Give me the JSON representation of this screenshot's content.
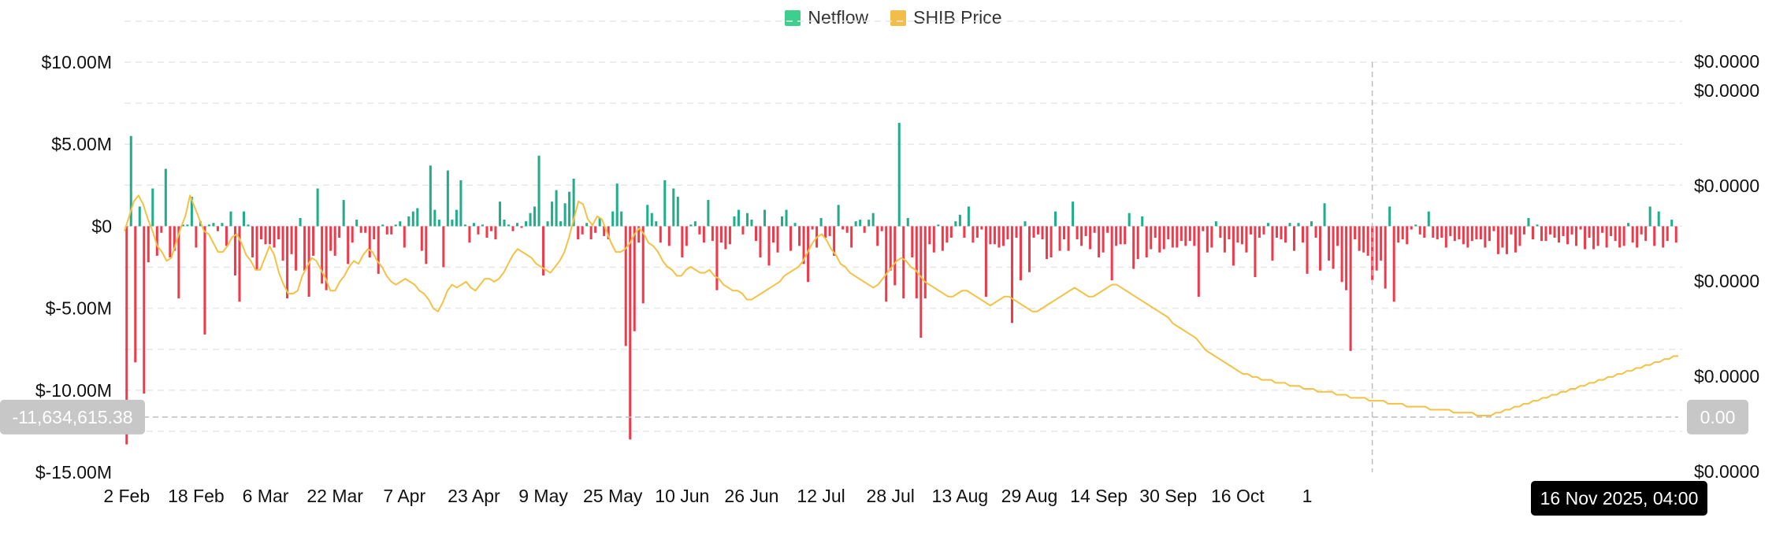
{
  "legend": [
    {
      "label": "Netflow",
      "color": "#3ecf8e"
    },
    {
      "label": "SHIB Price",
      "color": "#f3bd4a"
    }
  ],
  "colors": {
    "positive": "#1fad8b",
    "negative": "#ee3a4b",
    "price_line": "#f3c245",
    "grid": "#e7e7e7",
    "crosshair": "#bdbdbd"
  },
  "crosshair": {
    "y_value_label": "-11,634,615.38",
    "right_value_label": "0.00",
    "x_label": "16 Nov 2025, 04:00",
    "y_value": -11634615.38,
    "x_index": 287
  },
  "chart_data": {
    "type": "bar",
    "title": "",
    "xlabel": "",
    "ylabel": "",
    "x_tick_labels": [
      "2 Feb",
      "18 Feb",
      "6 Mar",
      "22 Mar",
      "7 Apr",
      "23 Apr",
      "9 May",
      "25 May",
      "10 Jun",
      "26 Jun",
      "12 Jul",
      "28 Jul",
      "13 Aug",
      "29 Aug",
      "14 Sep",
      "30 Sep",
      "16 Oct",
      "1"
    ],
    "x_tick_indices": [
      0,
      16,
      32,
      48,
      64,
      80,
      96,
      112,
      128,
      144,
      160,
      176,
      192,
      208,
      224,
      240,
      256,
      272
    ],
    "y_left_ticks": [
      "$10.00M",
      "$5.00M",
      "$0",
      "$-5.00M",
      "$-10.00M",
      "$-15.00M"
    ],
    "y_left_tick_values": [
      10000000,
      5000000,
      0,
      -5000000,
      -10000000,
      -15000000
    ],
    "y_right_ticks": [
      "$0.0000",
      "$0.0000",
      "$0.0000",
      "$0.0000",
      "$0.0000",
      "$0.0000"
    ],
    "ylim": [
      -15000000,
      10000000
    ],
    "grid": true,
    "legend_position": "top-center",
    "series": [
      {
        "name": "Netflow",
        "type": "bar",
        "values": [
          -13300000,
          5500000,
          -8300000,
          1200000,
          -10200000,
          -2200000,
          2300000,
          -1800000,
          -400000,
          3500000,
          -1900000,
          -1500000,
          -4400000,
          100000,
          100000,
          1800000,
          -1300000,
          300000,
          -6600000,
          100000,
          200000,
          -300000,
          200000,
          -1200000,
          900000,
          -3000000,
          -4600000,
          900000,
          100000,
          -1900000,
          -2700000,
          -800000,
          -1100000,
          -1100000,
          -1300000,
          -800000,
          -2100000,
          -4400000,
          -1700000,
          -2700000,
          500000,
          -2700000,
          -4300000,
          -1800000,
          2300000,
          -3500000,
          -3900000,
          -1500000,
          -1800000,
          -700000,
          1600000,
          -2300000,
          -1000000,
          400000,
          -400000,
          -400000,
          -1900000,
          -800000,
          -2900000,
          100000,
          -500000,
          -500000,
          100000,
          300000,
          -1300000,
          600000,
          900000,
          1100000,
          -1500000,
          -2300000,
          3700000,
          1000000,
          400000,
          -2500000,
          3400000,
          400000,
          1000000,
          2800000,
          100000,
          -1000000,
          200000,
          -500000,
          100000,
          -700000,
          -300000,
          -800000,
          1500000,
          400000,
          100000,
          -300000,
          200000,
          -100000,
          300000,
          800000,
          1200000,
          4300000,
          -3000000,
          300000,
          1500000,
          2200000,
          300000,
          1400000,
          2100000,
          2900000,
          -800000,
          -500000,
          200000,
          -800000,
          -400000,
          500000,
          -600000,
          -800000,
          900000,
          2600000,
          900000,
          -7300000,
          -13000000,
          -6400000,
          -1000000,
          -4700000,
          1300000,
          800000,
          300000,
          -1000000,
          2800000,
          -1200000,
          2300000,
          1800000,
          -1900000,
          -1200000,
          100000,
          300000,
          -500000,
          -1000000,
          1600000,
          -900000,
          -3900000,
          -1000000,
          -1400000,
          -1100000,
          600000,
          1000000,
          -500000,
          800000,
          400000,
          -900000,
          -1900000,
          1000000,
          -2400000,
          -1000000,
          -1600000,
          600000,
          1000000,
          -1500000,
          200000,
          -1200000,
          -2300000,
          -3400000,
          -200000,
          -1300000,
          500000,
          -700000,
          -600000,
          -1800000,
          1300000,
          -200000,
          -400000,
          -1300000,
          300000,
          400000,
          -400000,
          400000,
          800000,
          -1200000,
          -300000,
          -4600000,
          -2700000,
          -3600000,
          6300000,
          -4400000,
          500000,
          -1900000,
          -4400000,
          -6800000,
          -4400000,
          -1100000,
          -1600000,
          100000,
          -1500000,
          -1000000,
          -700000,
          300000,
          700000,
          -700000,
          1200000,
          -1000000,
          -700000,
          -200000,
          -4300000,
          -1100000,
          -1100000,
          -1300000,
          -1200000,
          -800000,
          -5900000,
          -700000,
          -3300000,
          300000,
          -2800000,
          -700000,
          -500000,
          -800000,
          -2000000,
          -1900000,
          900000,
          -1500000,
          -800000,
          -1500000,
          1500000,
          -800000,
          -1200000,
          -600000,
          -1400000,
          -400000,
          -1900000,
          -1600000,
          -400000,
          -3300000,
          -1200000,
          -1100000,
          -1100000,
          800000,
          -2600000,
          -2000000,
          600000,
          -1900000,
          -1400000,
          -700000,
          -1600000,
          -1400000,
          -800000,
          -1300000,
          -1300000,
          -900000,
          -1200000,
          -900000,
          -1200000,
          -4300000,
          -300000,
          -1600000,
          -1300000,
          300000,
          -700000,
          -1600000,
          -800000,
          -2400000,
          -1000000,
          -1100000,
          -1600000,
          -500000,
          -3100000,
          -700000,
          -500000,
          200000,
          -2100000,
          -700000,
          -800000,
          -1000000,
          200000,
          -1500000,
          200000,
          -1000000,
          -2900000,
          300000,
          -700000,
          -2700000,
          1400000,
          -2100000,
          -2600000,
          -1200000,
          -3400000,
          -3900000,
          -7600000,
          -800000,
          -1500000,
          -1600000,
          -1800000,
          -3300000,
          -2700000,
          -2100000,
          -3800000,
          1200000,
          -4600000,
          -1000000,
          -800000,
          -1100000,
          -200000,
          100000,
          -500000,
          -700000,
          900000,
          -700000,
          -800000,
          -700000,
          -1300000,
          -600000,
          -900000,
          -800000,
          -1100000,
          -1300000,
          -900000,
          -800000,
          -800000,
          -1300000,
          -900000,
          -300000,
          -1700000,
          -1300000,
          -1700000,
          -500000,
          -1600000,
          -1200000,
          -500000,
          500000,
          -800000,
          100000,
          -900000,
          -900000,
          -500000,
          -700000,
          -1000000,
          -600000,
          -1100000,
          -500000,
          -1200000,
          -200000,
          -1400000,
          -700000,
          -1400000,
          -1200000,
          -400000,
          -1300000,
          -600000,
          -900000,
          -1300000,
          -1200000,
          200000,
          -1000000,
          -1300000,
          -500000,
          -900000,
          1200000,
          -1200000,
          900000,
          -1300000,
          -900000,
          400000,
          -1000000
        ]
      },
      {
        "name": "SHIB Price",
        "type": "line",
        "axis": "right",
        "relative_level_0_to_1": [
          0.62,
          0.67,
          0.72,
          0.74,
          0.71,
          0.66,
          0.62,
          0.57,
          0.55,
          0.52,
          0.53,
          0.58,
          0.63,
          0.67,
          0.74,
          0.7,
          0.66,
          0.62,
          0.61,
          0.58,
          0.55,
          0.55,
          0.57,
          0.6,
          0.61,
          0.58,
          0.54,
          0.52,
          0.49,
          0.49,
          0.53,
          0.57,
          0.54,
          0.48,
          0.44,
          0.41,
          0.41,
          0.42,
          0.47,
          0.5,
          0.53,
          0.52,
          0.49,
          0.46,
          0.42,
          0.42,
          0.45,
          0.47,
          0.5,
          0.52,
          0.51,
          0.54,
          0.56,
          0.55,
          0.52,
          0.5,
          0.47,
          0.45,
          0.44,
          0.45,
          0.46,
          0.45,
          0.44,
          0.42,
          0.41,
          0.39,
          0.36,
          0.35,
          0.38,
          0.42,
          0.44,
          0.43,
          0.44,
          0.45,
          0.43,
          0.42,
          0.44,
          0.46,
          0.46,
          0.45,
          0.46,
          0.48,
          0.51,
          0.54,
          0.56,
          0.55,
          0.54,
          0.53,
          0.51,
          0.5,
          0.49,
          0.48,
          0.5,
          0.52,
          0.55,
          0.6,
          0.66,
          0.72,
          0.71,
          0.66,
          0.64,
          0.67,
          0.66,
          0.62,
          0.58,
          0.55,
          0.55,
          0.56,
          0.58,
          0.61,
          0.63,
          0.61,
          0.58,
          0.57,
          0.55,
          0.52,
          0.5,
          0.49,
          0.47,
          0.47,
          0.49,
          0.5,
          0.49,
          0.48,
          0.48,
          0.49,
          0.47,
          0.46,
          0.44,
          0.43,
          0.42,
          0.42,
          0.41,
          0.39,
          0.39,
          0.4,
          0.41,
          0.42,
          0.43,
          0.44,
          0.45,
          0.47,
          0.48,
          0.49,
          0.5,
          0.52,
          0.55,
          0.58,
          0.6,
          0.61,
          0.59,
          0.56,
          0.54,
          0.51,
          0.5,
          0.48,
          0.47,
          0.46,
          0.45,
          0.44,
          0.43,
          0.44,
          0.46,
          0.48,
          0.5,
          0.52,
          0.53,
          0.52,
          0.5,
          0.49,
          0.47,
          0.45,
          0.44,
          0.43,
          0.42,
          0.41,
          0.4,
          0.4,
          0.41,
          0.42,
          0.42,
          0.41,
          0.4,
          0.39,
          0.38,
          0.37,
          0.38,
          0.39,
          0.4,
          0.4,
          0.39,
          0.38,
          0.37,
          0.36,
          0.35,
          0.35,
          0.36,
          0.37,
          0.38,
          0.39,
          0.4,
          0.41,
          0.42,
          0.43,
          0.42,
          0.41,
          0.4,
          0.4,
          0.41,
          0.42,
          0.43,
          0.44,
          0.44,
          0.43,
          0.42,
          0.41,
          0.4,
          0.39,
          0.38,
          0.37,
          0.36,
          0.35,
          0.34,
          0.33,
          0.31,
          0.3,
          0.29,
          0.28,
          0.27,
          0.26,
          0.24,
          0.22,
          0.21,
          0.2,
          0.19,
          0.18,
          0.17,
          0.16,
          0.15,
          0.14,
          0.14,
          0.13,
          0.13,
          0.12,
          0.12,
          0.12,
          0.11,
          0.11,
          0.11,
          0.1,
          0.1,
          0.1,
          0.09,
          0.09,
          0.09,
          0.08,
          0.08,
          0.08,
          0.08,
          0.07,
          0.07,
          0.07,
          0.06,
          0.06,
          0.06,
          0.06,
          0.05,
          0.05,
          0.05,
          0.05,
          0.04,
          0.04,
          0.04,
          0.04,
          0.03,
          0.03,
          0.03,
          0.03,
          0.03,
          0.02,
          0.02,
          0.02,
          0.02,
          0.02,
          0.01,
          0.01,
          0.01,
          0.01,
          0.01,
          0.0,
          0.0,
          0.0,
          0.0,
          0.01,
          0.01,
          0.02,
          0.02,
          0.03,
          0.03,
          0.04,
          0.04,
          0.05,
          0.05,
          0.06,
          0.06,
          0.07,
          0.07,
          0.08,
          0.08,
          0.09,
          0.09,
          0.1,
          0.1,
          0.11,
          0.11,
          0.12,
          0.12,
          0.13,
          0.13,
          0.14,
          0.14,
          0.15,
          0.15,
          0.16,
          0.16,
          0.17,
          0.17,
          0.18,
          0.18,
          0.19,
          0.19,
          0.2,
          0.2
        ]
      }
    ]
  }
}
